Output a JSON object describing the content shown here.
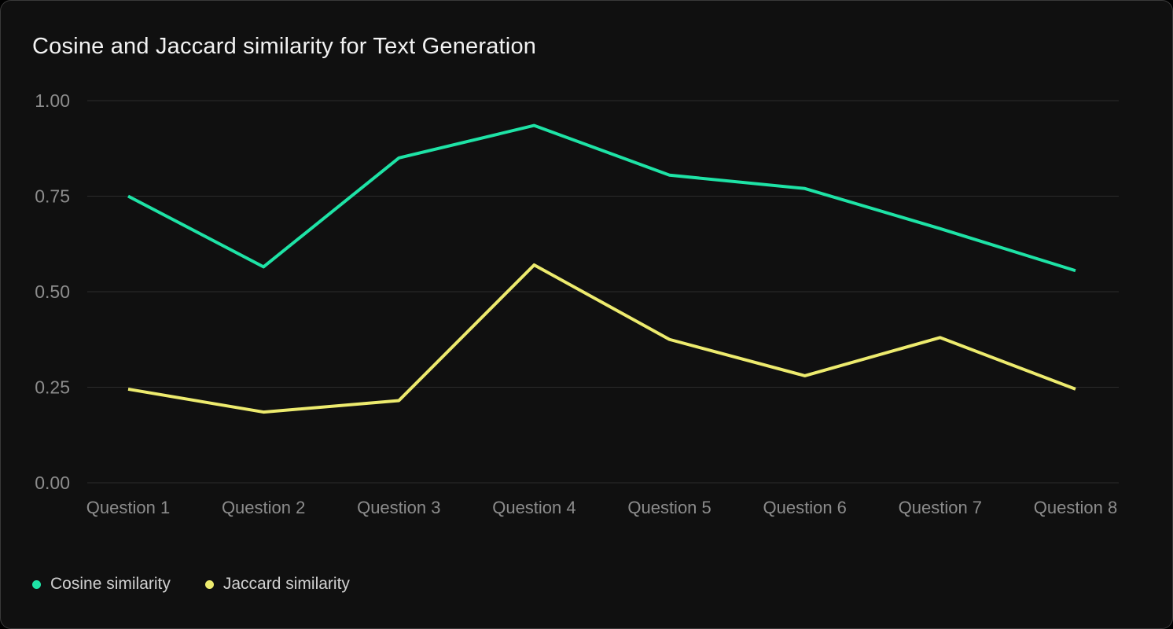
{
  "chart": {
    "title": "Cosine and Jaccard similarity for Text Generation"
  },
  "chart_data": {
    "type": "line",
    "title": "Cosine and Jaccard similarity for Text Generation",
    "categories": [
      "Question 1",
      "Question 2",
      "Question 3",
      "Question 4",
      "Question 5",
      "Question 6",
      "Question 7",
      "Question 8"
    ],
    "series": [
      {
        "name": "Cosine similarity",
        "color": "#1ee3a6",
        "values": [
          0.75,
          0.565,
          0.85,
          0.935,
          0.805,
          0.77,
          0.665,
          0.555
        ]
      },
      {
        "name": "Jaccard similarity",
        "color": "#edeb6e",
        "values": [
          0.245,
          0.185,
          0.215,
          0.57,
          0.375,
          0.28,
          0.38,
          0.245
        ]
      }
    ],
    "xlabel": "",
    "ylabel": "",
    "ylim": [
      0,
      1
    ],
    "yticks": [
      {
        "value": 0.0,
        "label": "0.00"
      },
      {
        "value": 0.25,
        "label": "0.25"
      },
      {
        "value": 0.5,
        "label": "0.50"
      },
      {
        "value": 0.75,
        "label": "0.75"
      },
      {
        "value": 1.0,
        "label": "1.00"
      }
    ],
    "grid": "horizontal",
    "legend_position": "bottom-left"
  },
  "colors": {
    "page_background": "#000000",
    "card_background": "#101010",
    "card_border": "#3a3a3a",
    "gridline": "#2b2b2b",
    "axis_label": "#8c8c8c",
    "title_text": "#f2f2f2",
    "legend_text": "#d0d0d0"
  }
}
